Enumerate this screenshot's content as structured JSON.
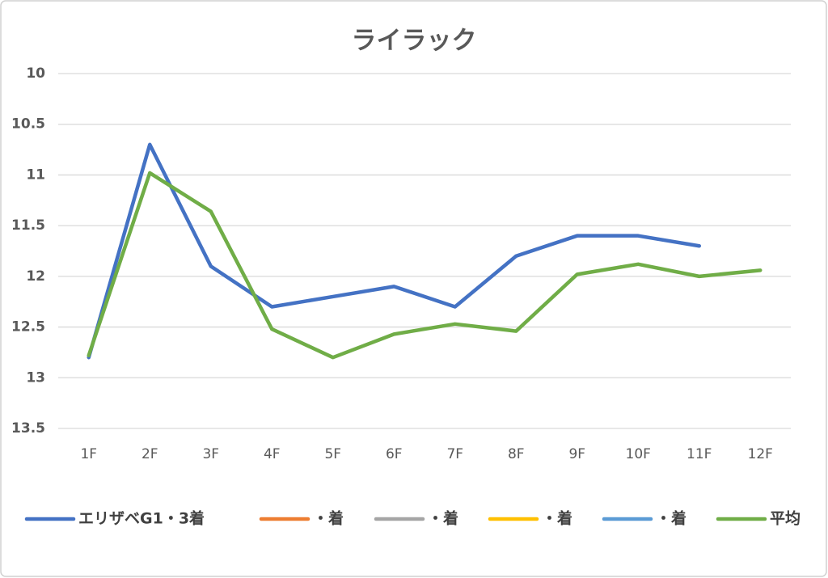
{
  "chart_data": {
    "type": "line",
    "title": "ライラック",
    "categories": [
      "1F",
      "2F",
      "3F",
      "4F",
      "5F",
      "6F",
      "7F",
      "8F",
      "9F",
      "10F",
      "11F",
      "12F"
    ],
    "series": [
      {
        "name": "エリザベG1・3着",
        "color": "#4472c4",
        "values": [
          12.8,
          10.7,
          11.9,
          12.3,
          12.2,
          12.1,
          12.3,
          11.8,
          11.6,
          11.6,
          11.7,
          null
        ]
      },
      {
        "name": "・着",
        "color": "#ed7d31",
        "values": [
          null,
          null,
          null,
          null,
          null,
          null,
          null,
          null,
          null,
          null,
          null,
          null
        ]
      },
      {
        "name": "・着",
        "color": "#a5a5a5",
        "values": [
          null,
          null,
          null,
          null,
          null,
          null,
          null,
          null,
          null,
          null,
          null,
          null
        ]
      },
      {
        "name": "・着",
        "color": "#ffc000",
        "values": [
          null,
          null,
          null,
          null,
          null,
          null,
          null,
          null,
          null,
          null,
          null,
          null
        ]
      },
      {
        "name": "・着",
        "color": "#5b9bd5",
        "values": [
          null,
          null,
          null,
          null,
          null,
          null,
          null,
          null,
          null,
          null,
          null,
          null
        ]
      },
      {
        "name": "平均",
        "color": "#70ad47",
        "values": [
          12.78,
          10.98,
          11.36,
          12.52,
          12.8,
          12.57,
          12.47,
          12.54,
          11.98,
          11.88,
          12.0,
          11.94
        ]
      }
    ],
    "ylim": [
      10,
      13.5
    ],
    "yticks": [
      10,
      10.5,
      11,
      11.5,
      12,
      12.5,
      13,
      13.5
    ],
    "y_inverted": true,
    "grid": true,
    "legend": "bottom"
  }
}
